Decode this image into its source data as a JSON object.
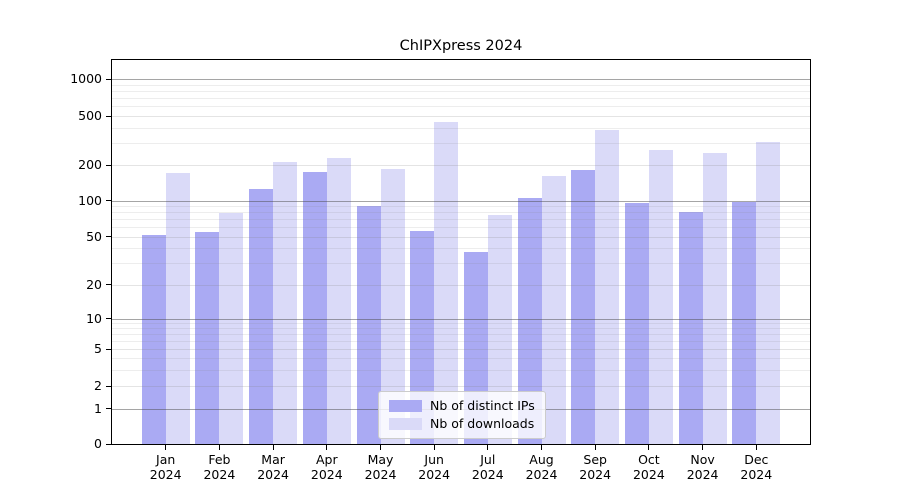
{
  "chart_data": {
    "type": "bar",
    "title": "ChIPXpress 2024",
    "categories": [
      "Jan",
      "Feb",
      "Mar",
      "Apr",
      "May",
      "Jun",
      "Jul",
      "Aug",
      "Sep",
      "Oct",
      "Nov",
      "Dec"
    ],
    "x_tick_second_line": "2024",
    "series": [
      {
        "name": "Nb of distinct IPs",
        "color": "#aaaaf3",
        "values": [
          52,
          55,
          125,
          175,
          90,
          56,
          37,
          105,
          180,
          95,
          80,
          98
        ]
      },
      {
        "name": "Nb of downloads",
        "color": "#dadaf8",
        "values": [
          170,
          78,
          210,
          230,
          185,
          450,
          76,
          160,
          385,
          265,
          250,
          305
        ]
      }
    ],
    "yscale": "symlog",
    "ylim": [
      0,
      1000
    ],
    "yticks": [
      0,
      1,
      2,
      5,
      10,
      20,
      50,
      100,
      200,
      500,
      1000
    ],
    "grid": true,
    "legend": {
      "position": "lower center",
      "labels": [
        "Nb of distinct IPs",
        "Nb of downloads"
      ]
    }
  }
}
